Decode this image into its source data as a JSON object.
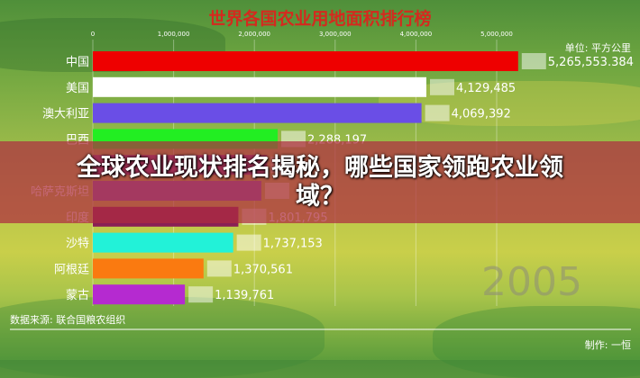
{
  "headline": "全球农业现状排名揭秘，哪些国家领跑农业领域？",
  "chart_data": {
    "type": "bar",
    "orientation": "horizontal",
    "title": "世界各国农业用地面积排行榜",
    "unit_label": "单位: 平方公里",
    "xlim": [
      0,
      5500000
    ],
    "ticks": [
      "0",
      "1,000,000",
      "2,000,000",
      "3,000,000",
      "4,000,000",
      "5,000,000"
    ],
    "tick_values": [
      0,
      1000000,
      2000000,
      3000000,
      4000000,
      5000000
    ],
    "grid": true,
    "year": "2005",
    "categories": [
      "中国",
      "美国",
      "澳大利亚",
      "巴西",
      "",
      "哈萨克斯坦",
      "印度",
      "沙特",
      "阿根廷",
      "蒙古"
    ],
    "values": [
      5265553.384,
      4129485,
      4069392,
      2288197,
      2157440,
      2086286,
      1801795,
      1737153,
      1370561,
      1139761
    ],
    "value_labels": [
      "5,265,553.384",
      "4,129,485",
      "4,069,392",
      "2,288,197",
      "",
      "",
      "1,801,795",
      "1,737,153",
      "1,370,561",
      "1,139,761"
    ],
    "colors": [
      "#ee0000",
      "#ffffff",
      "#6a4ee6",
      "#22ee22",
      "#7a3a80",
      "#8a5bb0",
      "#8a1f55",
      "#22f2d8",
      "#fa7a10",
      "#b52ad0"
    ],
    "source": "数据来源: 联合国粮农组织",
    "credit": "制作: 一恒"
  }
}
